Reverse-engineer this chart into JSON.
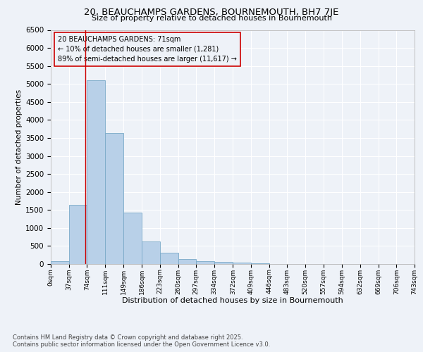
{
  "title": "20, BEAUCHAMPS GARDENS, BOURNEMOUTH, BH7 7JE",
  "subtitle": "Size of property relative to detached houses in Bournemouth",
  "xlabel": "Distribution of detached houses by size in Bournemouth",
  "ylabel": "Number of detached properties",
  "bar_color": "#b8d0e8",
  "bar_edge_color": "#7aaac8",
  "vline_color": "#cc0000",
  "vline_x": 71,
  "annotation_line1": "20 BEAUCHAMPS GARDENS: 71sqm",
  "annotation_line2": "← 10% of detached houses are smaller (1,281)",
  "annotation_line3": "89% of semi-detached houses are larger (11,617) →",
  "footer1": "Contains HM Land Registry data © Crown copyright and database right 2025.",
  "footer2": "Contains public sector information licensed under the Open Government Licence v3.0.",
  "bin_edges": [
    0,
    37,
    74,
    111,
    149,
    186,
    223,
    260,
    297,
    334,
    372,
    409,
    446,
    483,
    520,
    557,
    594,
    632,
    669,
    706,
    743
  ],
  "bin_labels": [
    "0sqm",
    "37sqm",
    "74sqm",
    "111sqm",
    "149sqm",
    "186sqm",
    "223sqm",
    "260sqm",
    "297sqm",
    "334sqm",
    "372sqm",
    "409sqm",
    "446sqm",
    "483sqm",
    "520sqm",
    "557sqm",
    "594sqm",
    "632sqm",
    "669sqm",
    "706sqm",
    "743sqm"
  ],
  "bar_heights": [
    75,
    1650,
    5100,
    3630,
    1420,
    620,
    315,
    135,
    85,
    55,
    30,
    15,
    5,
    3,
    2,
    1,
    0,
    0,
    0,
    0
  ],
  "ylim": [
    0,
    6500
  ],
  "yticks": [
    0,
    500,
    1000,
    1500,
    2000,
    2500,
    3000,
    3500,
    4000,
    4500,
    5000,
    5500,
    6000,
    6500
  ],
  "background_color": "#eef2f8",
  "grid_color": "#ffffff"
}
